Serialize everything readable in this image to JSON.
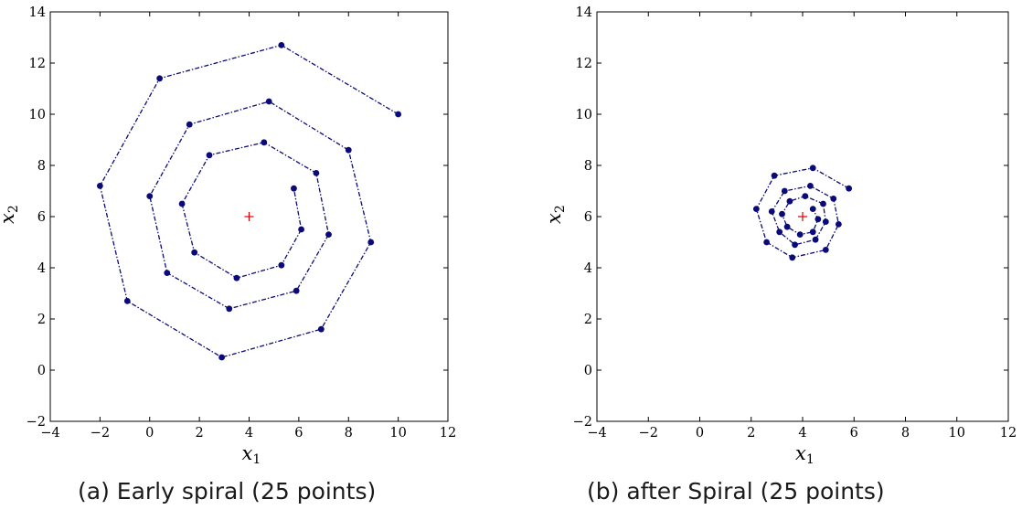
{
  "captions": {
    "a": "(a) Early spiral (25 points)",
    "b": "(b) after Spiral (25 points)"
  },
  "colors": {
    "series": "#0a0a78",
    "center_marker": "#e00000",
    "axes": "#000000"
  },
  "chart_data": [
    {
      "type": "line",
      "xlabel": "x1",
      "ylabel": "x2",
      "xlim": [
        -4,
        12
      ],
      "ylim": [
        -2,
        14
      ],
      "xticks": [
        -4,
        -2,
        0,
        2,
        4,
        6,
        8,
        10,
        12
      ],
      "yticks": [
        -2,
        0,
        2,
        4,
        6,
        8,
        10,
        12,
        14
      ],
      "line_style": "dash-dot with dot markers",
      "center": {
        "x": 4,
        "y": 6,
        "marker": "+"
      },
      "points": [
        {
          "x": 10.0,
          "y": 10.0
        },
        {
          "x": 5.3,
          "y": 12.7
        },
        {
          "x": 0.4,
          "y": 11.4
        },
        {
          "x": -2.0,
          "y": 7.2
        },
        {
          "x": -0.9,
          "y": 2.7
        },
        {
          "x": 2.9,
          "y": 0.5
        },
        {
          "x": 6.9,
          "y": 1.6
        },
        {
          "x": 8.9,
          "y": 5.0
        },
        {
          "x": 8.0,
          "y": 8.6
        },
        {
          "x": 4.8,
          "y": 10.5
        },
        {
          "x": 1.6,
          "y": 9.6
        },
        {
          "x": 0.0,
          "y": 6.8
        },
        {
          "x": 0.7,
          "y": 3.8
        },
        {
          "x": 3.2,
          "y": 2.4
        },
        {
          "x": 5.9,
          "y": 3.1
        },
        {
          "x": 7.2,
          "y": 5.3
        },
        {
          "x": 6.7,
          "y": 7.7
        },
        {
          "x": 4.6,
          "y": 8.9
        },
        {
          "x": 2.4,
          "y": 8.4
        },
        {
          "x": 1.3,
          "y": 6.5
        },
        {
          "x": 1.8,
          "y": 4.6
        },
        {
          "x": 3.5,
          "y": 3.6
        },
        {
          "x": 5.3,
          "y": 4.1
        },
        {
          "x": 6.1,
          "y": 5.5
        },
        {
          "x": 5.8,
          "y": 7.1
        }
      ]
    },
    {
      "type": "line",
      "xlabel": "x1",
      "ylabel": "x2",
      "xlim": [
        -4,
        12
      ],
      "ylim": [
        -2,
        14
      ],
      "xticks": [
        -4,
        -2,
        0,
        2,
        4,
        6,
        8,
        10,
        12
      ],
      "yticks": [
        -2,
        0,
        2,
        4,
        6,
        8,
        10,
        12,
        14
      ],
      "line_style": "dash-dot with dot markers",
      "center": {
        "x": 4,
        "y": 6,
        "marker": "+"
      },
      "points": [
        {
          "x": 5.8,
          "y": 7.1
        },
        {
          "x": 4.4,
          "y": 7.9
        },
        {
          "x": 2.9,
          "y": 7.6
        },
        {
          "x": 2.2,
          "y": 6.3
        },
        {
          "x": 2.6,
          "y": 5.0
        },
        {
          "x": 3.6,
          "y": 4.4
        },
        {
          "x": 4.9,
          "y": 4.7
        },
        {
          "x": 5.4,
          "y": 5.7
        },
        {
          "x": 5.2,
          "y": 6.7
        },
        {
          "x": 4.3,
          "y": 7.2
        },
        {
          "x": 3.3,
          "y": 7.0
        },
        {
          "x": 2.8,
          "y": 6.2
        },
        {
          "x": 3.1,
          "y": 5.4
        },
        {
          "x": 3.7,
          "y": 4.9
        },
        {
          "x": 4.5,
          "y": 5.1
        },
        {
          "x": 4.9,
          "y": 5.8
        },
        {
          "x": 4.8,
          "y": 6.5
        },
        {
          "x": 4.1,
          "y": 6.8
        },
        {
          "x": 3.5,
          "y": 6.6
        },
        {
          "x": 3.2,
          "y": 6.1
        },
        {
          "x": 3.4,
          "y": 5.6
        },
        {
          "x": 3.9,
          "y": 5.3
        },
        {
          "x": 4.4,
          "y": 5.4
        },
        {
          "x": 4.6,
          "y": 5.9
        },
        {
          "x": 4.4,
          "y": 6.3
        }
      ]
    }
  ]
}
